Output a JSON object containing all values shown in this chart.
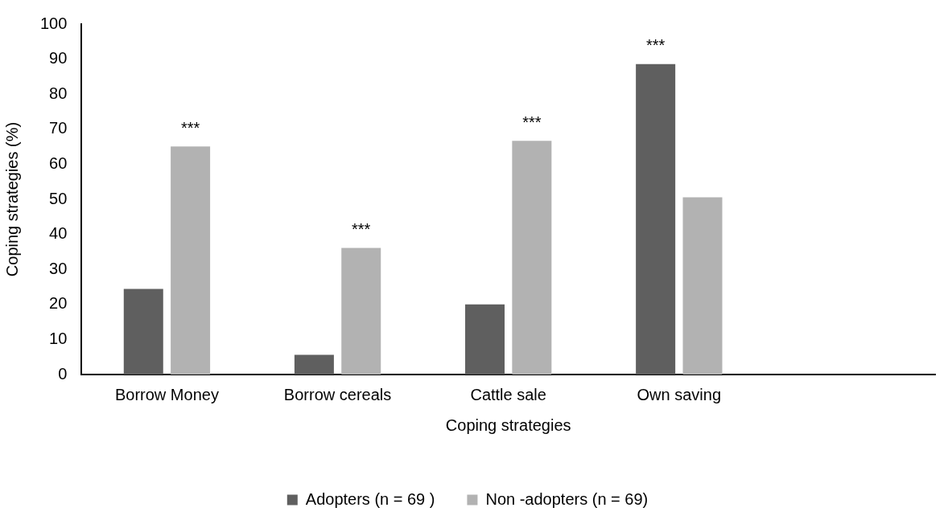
{
  "chart_data": {
    "type": "bar",
    "xlabel": "Coping strategies",
    "ylabel": "Coping strategies (%)",
    "categories": [
      "Borrow Money",
      "Borrow cereals",
      "Cattle sale",
      "Own saving",
      null
    ],
    "series": [
      {
        "name": "Adopters (n = 69 )",
        "color": "#5f5f5f",
        "values": [
          24.4,
          5.6,
          20.0,
          88.6,
          null
        ]
      },
      {
        "name": "Non -adopters (n = 69)",
        "color": "#b2b2b2",
        "values": [
          65.1,
          36.1,
          66.7,
          50.6,
          null
        ]
      }
    ],
    "ylim": [
      0,
      100
    ],
    "yticks": [
      0,
      10,
      20,
      30,
      40,
      50,
      60,
      70,
      80,
      90,
      100
    ],
    "grid": false,
    "legend": "bottom",
    "annotations": [
      {
        "text": "***",
        "x": "Borrow Money",
        "y": 65.1
      },
      {
        "text": "***",
        "x": "Borrow cereals",
        "y": 36.1
      },
      {
        "text": "***",
        "x": "Cattle sale",
        "y": 66.7
      },
      {
        "text": "***",
        "x": "Own saving",
        "y": 88.6
      }
    ]
  }
}
